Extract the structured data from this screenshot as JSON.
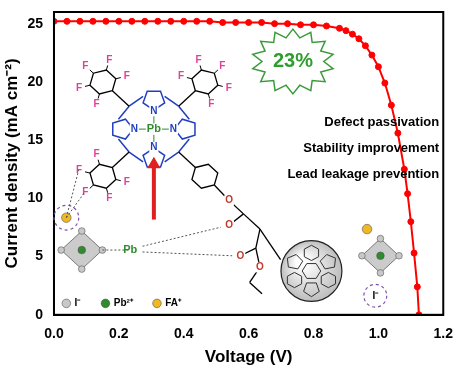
{
  "chart_data": {
    "type": "line",
    "x_label": "Voltage (V)",
    "y_label": "Current density (mA cm⁻²)",
    "x": [
      0,
      0.04,
      0.08,
      0.12,
      0.16,
      0.2,
      0.24,
      0.28,
      0.32,
      0.36,
      0.4,
      0.44,
      0.48,
      0.52,
      0.56,
      0.6,
      0.64,
      0.68,
      0.72,
      0.76,
      0.8,
      0.84,
      0.88,
      0.9,
      0.92,
      0.94,
      0.96,
      0.98,
      1.0,
      1.02,
      1.04,
      1.06,
      1.08,
      1.09,
      1.1,
      1.11,
      1.12,
      1.125
    ],
    "values": [
      25.2,
      25.2,
      25.2,
      25.2,
      25.2,
      25.2,
      25.2,
      25.2,
      25.2,
      25.2,
      25.2,
      25.2,
      25.2,
      25.1,
      25.1,
      25.1,
      25.1,
      25.0,
      25.0,
      24.9,
      24.9,
      24.8,
      24.6,
      24.4,
      24.1,
      23.7,
      23.1,
      22.3,
      21.3,
      19.9,
      18.0,
      15.6,
      12.5,
      10.4,
      8.0,
      5.3,
      2.4,
      0.0
    ],
    "color": "#ff0000",
    "marker": "circle",
    "line_style": "solid",
    "xlim": [
      0,
      1.2
    ],
    "xticks": [
      {
        "value": 0,
        "label": "0.0"
      },
      0.2,
      0.4,
      0.6,
      0.8,
      {
        "value": 1,
        "label": "1.0"
      },
      1.2
    ],
    "ylim": [
      0,
      26
    ],
    "yticks": [
      0,
      5,
      10,
      15,
      20,
      25
    ],
    "grid": false
  },
  "inset": {
    "efficiency": "23%",
    "features": [
      "Defect passivation",
      "Stability improvement",
      "Lead leakage prevention"
    ],
    "porphyrin": {
      "metal": "Pb",
      "nitrogens": [
        "N",
        "N",
        "N",
        "N"
      ],
      "aryl_fluorines": [
        [
          "F",
          "F",
          "F",
          "F",
          "F"
        ],
        [
          "F",
          "F",
          "F",
          "F",
          "F"
        ],
        [
          "F",
          "F",
          "F",
          "F",
          "F"
        ]
      ]
    },
    "linker_oxygens": [
      "O",
      "O",
      "O",
      "O"
    ],
    "perovskite": {
      "metal": "Pb",
      "anion": "I⁻"
    },
    "legend": [
      {
        "label": "I⁻",
        "color": "#c8c8c8"
      },
      {
        "label": "Pb²⁺",
        "color": "#2e8b2e"
      },
      {
        "label": "FA⁺",
        "color": "#f2b824"
      }
    ]
  }
}
